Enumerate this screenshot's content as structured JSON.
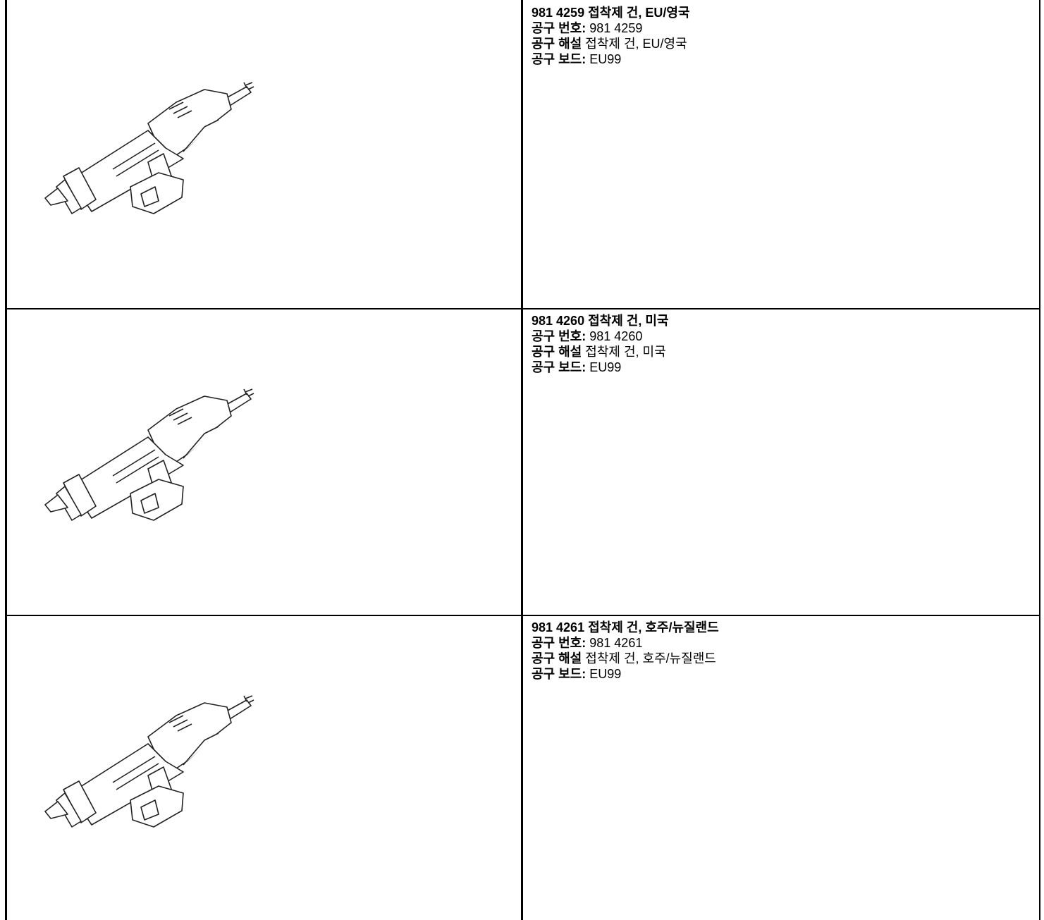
{
  "rows": [
    {
      "title": "981 4259 접착제 건, EU/영국",
      "fields": [
        {
          "label": "공구 번호:",
          "value": "981 4259"
        },
        {
          "label": "공구 해설",
          "value": "접착제 건, EU/영국"
        },
        {
          "label": "공구 보드:",
          "value": "EU99"
        }
      ]
    },
    {
      "title": "981 4260 접착제 건, 미국",
      "fields": [
        {
          "label": "공구 번호:",
          "value": "981 4260"
        },
        {
          "label": "공구 해설",
          "value": "접착제 건, 미국"
        },
        {
          "label": "공구 보드:",
          "value": "EU99"
        }
      ]
    },
    {
      "title": "981 4261 접착제 건, 호주/뉴질랜드",
      "fields": [
        {
          "label": "공구 번호:",
          "value": "981 4261"
        },
        {
          "label": "공구 해설",
          "value": "접착제 건, 호주/뉴질랜드"
        },
        {
          "label": "공구 보드:",
          "value": "EU99"
        }
      ]
    }
  ]
}
